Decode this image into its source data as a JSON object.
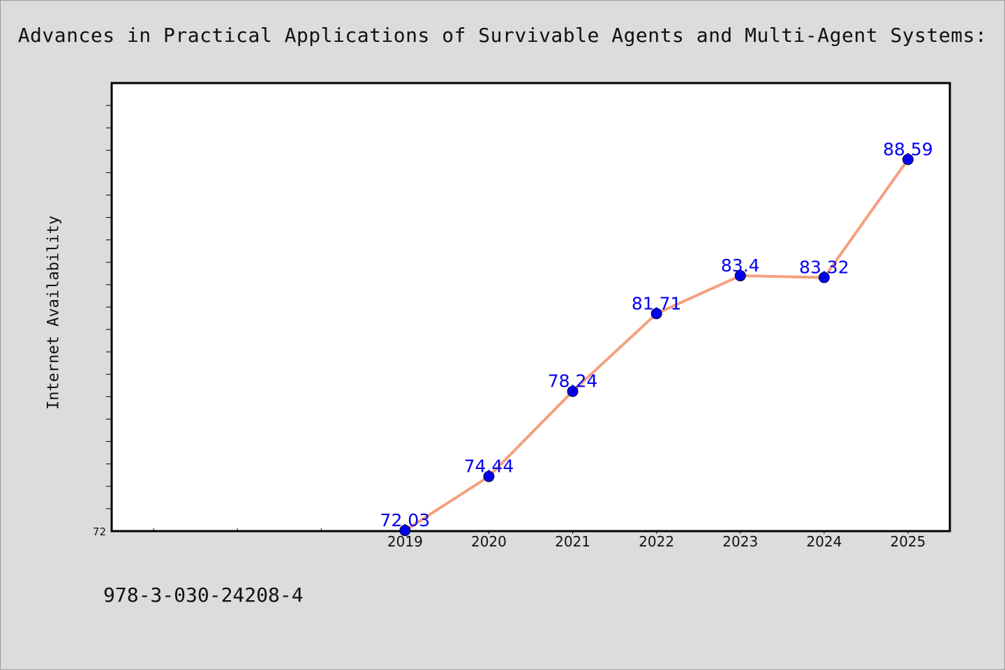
{
  "title": "Advances in Practical Applications of Survivable Agents and Multi-Agent Systems:",
  "footnote": "978-3-030-24208-4",
  "chart_data": {
    "type": "line",
    "title": "Advances in Practical Applications of Survivable Agents and Multi-Agent Systems:",
    "xlabel": "",
    "ylabel": "Internet Availability",
    "x": [
      "2019",
      "2020",
      "2021",
      "2022",
      "2023",
      "2024",
      "2025"
    ],
    "series": [
      {
        "values": [
          72.03,
          74.44,
          78.24,
          81.71,
          83.4,
          83.32,
          88.59
        ],
        "labels": [
          "72.03",
          "74.44",
          "78.24",
          "81.71",
          "83.4",
          "83.32",
          "88.59"
        ],
        "line_color": "#f4a07e",
        "marker_color": "#0000ee"
      }
    ],
    "ylim": [
      72,
      92
    ],
    "x_range": [
      2015.5,
      2025.5
    ],
    "ytick_labels": [
      "72"
    ],
    "grid": false,
    "legend": "none",
    "colors": {
      "background": "#dcdcdc",
      "plot_area": "#ffffff",
      "data_label": "#0000ee"
    }
  }
}
